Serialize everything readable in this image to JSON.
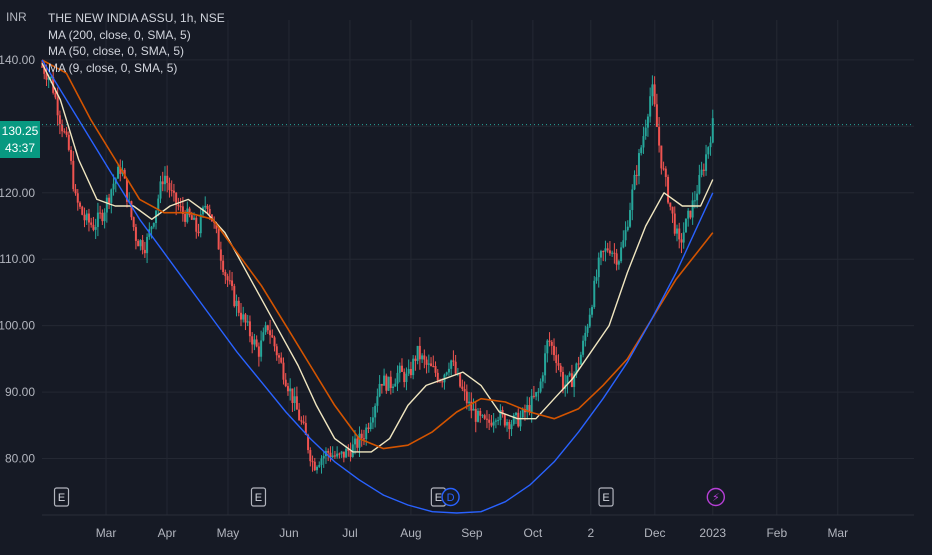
{
  "unit_label": "INR",
  "legend": {
    "symbol_line": "THE NEW INDIA ASSU, 1h, NSE",
    "ma200": "MA (200, close, 0, SMA, 5)",
    "ma50": "MA (50, close, 0, SMA, 5)",
    "ma9": "MA (9, close, 0, SMA, 5)"
  },
  "price_badge": {
    "price": "130.25",
    "countdown": "43:37"
  },
  "colors": {
    "background": "#161a25",
    "grid": "#242833",
    "up": "#26a69a",
    "down": "#ef5350",
    "ma9": "#f0e6c0",
    "ma50": "#d35400",
    "arc": "#2962ff",
    "badge": "#089981"
  },
  "chart_data": {
    "type": "candlestick",
    "y_ticks": [
      "140.00",
      "130.00",
      "120.00",
      "110.00",
      "100.00",
      "90.00",
      "80.00"
    ],
    "y_tick_values": [
      140,
      130,
      120,
      110,
      100,
      90,
      80
    ],
    "ylim": [
      71.5,
      146
    ],
    "x_ticks": [
      "Mar",
      "Apr",
      "May",
      "Jun",
      "Jul",
      "Aug",
      "Sep",
      "Oct",
      "2",
      "Dec",
      "2023",
      "Feb",
      "Mar"
    ],
    "x_tick_positions": [
      1.55,
      2.55,
      3.55,
      4.55,
      5.55,
      6.55,
      7.55,
      8.55,
      9.5,
      10.55,
      11.5,
      12.55,
      13.55
    ],
    "xlim": [
      0.5,
      14.8
    ],
    "last_price": 130.25,
    "close_series": {
      "x": [
        0.5,
        0.65,
        0.8,
        0.95,
        1.05,
        1.2,
        1.35,
        1.5,
        1.65,
        1.8,
        1.95,
        2.05,
        2.2,
        2.35,
        2.5,
        2.65,
        2.8,
        2.95,
        3.05,
        3.2,
        3.35,
        3.5,
        3.65,
        3.8,
        3.95,
        4.05,
        4.2,
        4.35,
        4.5,
        4.65,
        4.8,
        4.95,
        5.05,
        5.2,
        5.35,
        5.5,
        5.65,
        5.8,
        5.95,
        6.05,
        6.2,
        6.35,
        6.5,
        6.65,
        6.8,
        6.95,
        7.05,
        7.2,
        7.35,
        7.5,
        7.65,
        7.8,
        7.95,
        8.05,
        8.2,
        8.35,
        8.5,
        8.65,
        8.8,
        8.95,
        9.05,
        9.2,
        9.35,
        9.5,
        9.65,
        9.8,
        9.95,
        10.05,
        10.2,
        10.35,
        10.5,
        10.65,
        10.8,
        10.95,
        11.05,
        11.2,
        11.35,
        11.5
      ],
      "y": [
        139,
        137,
        131,
        126,
        119,
        116,
        115,
        117,
        121,
        124,
        117,
        113,
        112,
        117,
        123,
        119,
        117,
        116,
        114,
        119,
        114,
        108,
        104,
        101,
        98,
        96,
        100,
        96,
        92,
        88,
        84,
        79,
        80,
        81,
        80,
        81,
        82,
        84,
        88,
        92,
        91,
        93,
        92,
        96,
        94,
        93,
        92,
        95,
        91,
        88,
        86,
        85,
        87,
        86,
        85.5,
        86,
        88,
        90,
        98,
        95,
        91,
        92,
        96,
        103,
        110,
        112,
        110,
        113,
        121,
        128,
        136,
        125,
        118,
        112,
        115,
        119,
        124,
        130.25
      ]
    },
    "series": [
      {
        "name": "MA (9, close, 0, SMA, 5)",
        "x": [
          0.5,
          0.8,
          1.1,
          1.4,
          1.7,
          2.0,
          2.3,
          2.6,
          2.9,
          3.2,
          3.5,
          3.8,
          4.1,
          4.4,
          4.7,
          5.0,
          5.3,
          5.6,
          5.9,
          6.2,
          6.5,
          6.8,
          7.1,
          7.4,
          7.7,
          8.0,
          8.3,
          8.6,
          8.9,
          9.2,
          9.5,
          9.8,
          10.1,
          10.4,
          10.7,
          11.0,
          11.3,
          11.5
        ],
        "y": [
          139.5,
          134,
          125,
          119,
          118,
          118,
          116,
          118,
          119,
          117,
          114,
          109,
          104,
          99,
          94,
          88,
          83,
          81,
          81,
          83,
          88,
          91,
          92,
          93,
          91,
          87,
          86,
          86,
          89,
          92,
          96,
          100,
          108,
          115,
          120,
          118,
          118,
          122
        ]
      },
      {
        "name": "MA (50, close, 0, SMA, 5)",
        "x": [
          0.5,
          0.9,
          1.3,
          1.7,
          2.1,
          2.5,
          2.9,
          3.3,
          3.7,
          4.1,
          4.5,
          4.9,
          5.3,
          5.7,
          6.1,
          6.5,
          6.9,
          7.3,
          7.7,
          8.1,
          8.5,
          8.9,
          9.3,
          9.7,
          10.1,
          10.5,
          10.9,
          11.2,
          11.5
        ],
        "y": [
          140,
          138,
          131,
          125,
          119,
          117,
          117,
          116,
          111,
          106,
          100,
          94,
          88,
          83,
          81.5,
          82,
          84,
          87,
          89,
          88.5,
          87,
          86,
          87.5,
          91,
          95,
          101,
          107,
          110.5,
          114
        ]
      },
      {
        "name": "cup arc",
        "x": [
          0.5,
          0.9,
          1.3,
          1.7,
          2.1,
          2.5,
          2.9,
          3.3,
          3.7,
          4.1,
          4.5,
          4.9,
          5.3,
          5.7,
          6.1,
          6.5,
          6.9,
          7.3,
          7.7,
          8.1,
          8.5,
          8.9,
          9.3,
          9.7,
          10.1,
          10.5,
          10.9,
          11.2,
          11.5
        ],
        "y": [
          140,
          134,
          128,
          122,
          116,
          111,
          106,
          101,
          96,
          91.5,
          87,
          83,
          79.5,
          76.8,
          74.5,
          73,
          72,
          71.8,
          72,
          73.5,
          76,
          79.5,
          84,
          89,
          94.5,
          101,
          108,
          114,
          120
        ]
      }
    ],
    "event_markers": [
      {
        "label": "E",
        "x": 0.82,
        "shape": "square"
      },
      {
        "label": "E",
        "x": 4.05,
        "shape": "square"
      },
      {
        "label": "E",
        "x": 7.0,
        "shape": "square"
      },
      {
        "label": "D",
        "x": 7.2,
        "shape": "circle"
      },
      {
        "label": "E",
        "x": 9.75,
        "shape": "square"
      },
      {
        "label": "⚡",
        "x": 11.55,
        "shape": "circle"
      }
    ]
  }
}
